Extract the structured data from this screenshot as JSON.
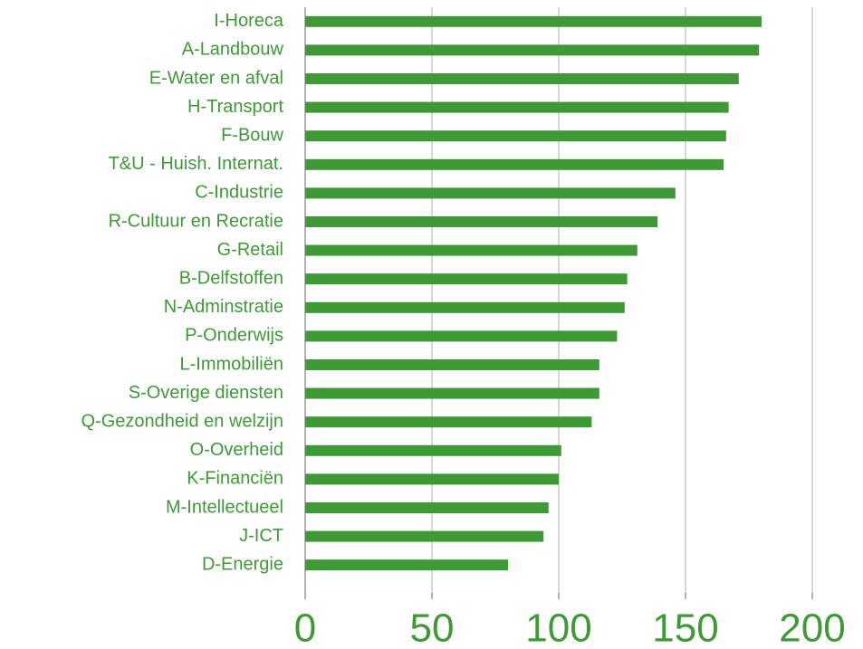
{
  "chart_data": {
    "type": "barh",
    "categories": [
      "I-Horeca",
      "A-Landbouw",
      "E-Water en afval",
      "H-Transport",
      "F-Bouw",
      "T&U - Huish. Internat.",
      "C-Industrie",
      "R-Cultuur en Recratie",
      "G-Retail",
      "B-Delfstoffen",
      "N-Adminstratie",
      "P-Onderwijs",
      "L-Immobiliën",
      "S-Overige diensten",
      "Q-Gezondheid en welzijn",
      "O-Overheid",
      "K-Financiën",
      "M-Intellectueel",
      "J-ICT",
      "D-Energie"
    ],
    "values": [
      180,
      179,
      171,
      167,
      166,
      165,
      146,
      139,
      131,
      127,
      126,
      123,
      116,
      116,
      113,
      101,
      100,
      96,
      94,
      80
    ],
    "color": "#3d9a35",
    "xlim": [
      0,
      200
    ],
    "xticks": [
      0,
      50,
      100,
      150,
      200
    ],
    "grid": true
  }
}
